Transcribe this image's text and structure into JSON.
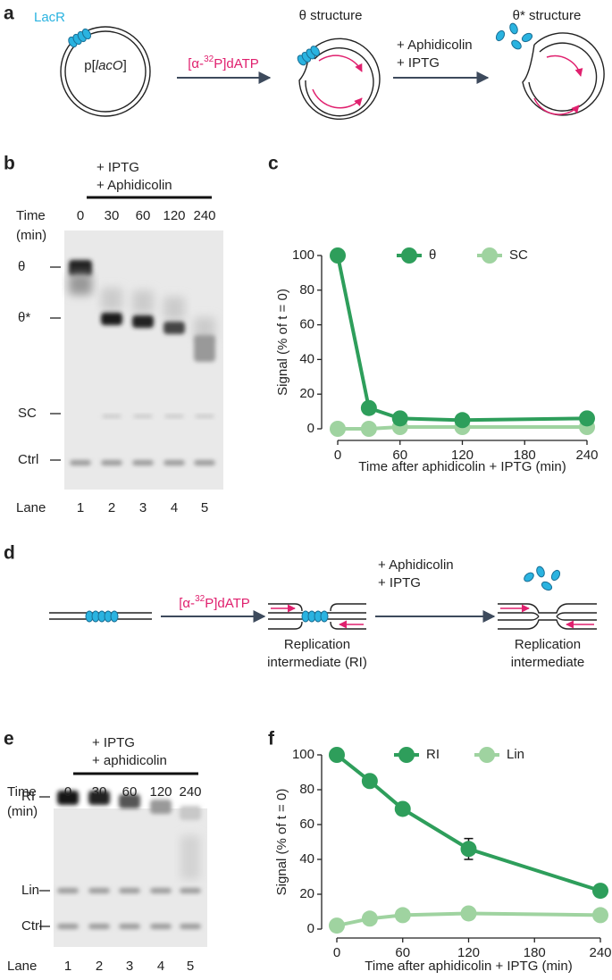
{
  "panel_labels": [
    "a",
    "b",
    "c",
    "d",
    "e",
    "f"
  ],
  "panel_a": {
    "lacr": "LacR",
    "plasmid": {
      "prefix": "p[",
      "italic": "lacO",
      "suffix": "]"
    },
    "label_arrow1": {
      "pre": "[α-",
      "sup": "32",
      "post": "P]dATP"
    },
    "arrow2": [
      "+ Aphidicolin",
      "+ IPTG"
    ],
    "theta": "θ structure",
    "theta_star": "θ* structure"
  },
  "panel_b": {
    "treatment": [
      "+ IPTG",
      "+ Aphidicolin"
    ],
    "time_label": [
      "Time",
      "(min)"
    ],
    "times": [
      "0",
      "30",
      "60",
      "120",
      "240"
    ],
    "rows": [
      "θ",
      "θ*",
      "SC",
      "Ctrl"
    ],
    "lane_label": "Lane",
    "lanes": [
      "1",
      "2",
      "3",
      "4",
      "5"
    ]
  },
  "panel_d": {
    "label_arrow1": {
      "pre": "[α-",
      "sup": "32",
      "post": "P]dATP"
    },
    "arrow2": [
      "+ Aphidicolin",
      "+ IPTG"
    ],
    "ri": [
      "Replication",
      "intermediate (RI)"
    ],
    "ri2": [
      "Replication",
      "intermediate"
    ]
  },
  "panel_e": {
    "treatment": [
      "+ IPTG",
      "+ aphidicolin"
    ],
    "time_label": [
      "Time",
      "(min)"
    ],
    "times": [
      "0",
      "30",
      "60",
      "120",
      "240"
    ],
    "rows": [
      "RI",
      "Lin",
      "Ctrl"
    ],
    "lane_label": "Lane",
    "lanes": [
      "1",
      "2",
      "3",
      "4",
      "5"
    ]
  },
  "chart_data": [
    {
      "type": "line",
      "x_label": "Time after aphidicolin + IPTG (min)",
      "y_label": "Signal (% of t = 0)",
      "x": [
        0,
        30,
        60,
        120,
        240
      ],
      "xlim": [
        0,
        240
      ],
      "xticks": [
        0,
        60,
        120,
        180,
        240
      ],
      "ylim": [
        0,
        100
      ],
      "yticks": [
        0,
        20,
        40,
        60,
        80,
        100
      ],
      "series": [
        {
          "name": "θ",
          "color": "#2e9e5b",
          "values": [
            100,
            12,
            6,
            5,
            6
          ]
        },
        {
          "name": "SC",
          "color": "#9fd3a0",
          "values": [
            0,
            0,
            1,
            1,
            1
          ]
        }
      ]
    },
    {
      "type": "line",
      "x_label": "Time after aphidicolin + IPTG (min)",
      "y_label": "Signal (% of t = 0)",
      "x": [
        0,
        30,
        60,
        120,
        240
      ],
      "xlim": [
        0,
        240
      ],
      "xticks": [
        0,
        60,
        120,
        180,
        240
      ],
      "ylim": [
        0,
        100
      ],
      "yticks": [
        0,
        20,
        40,
        60,
        80,
        100
      ],
      "series": [
        {
          "name": "RI",
          "color": "#2e9e5b",
          "values": [
            100,
            85,
            69,
            46,
            22
          ],
          "errors": [
            null,
            null,
            null,
            6,
            3
          ]
        },
        {
          "name": "Lin",
          "color": "#9fd3a0",
          "values": [
            2,
            6,
            8,
            9,
            8
          ]
        }
      ]
    }
  ]
}
